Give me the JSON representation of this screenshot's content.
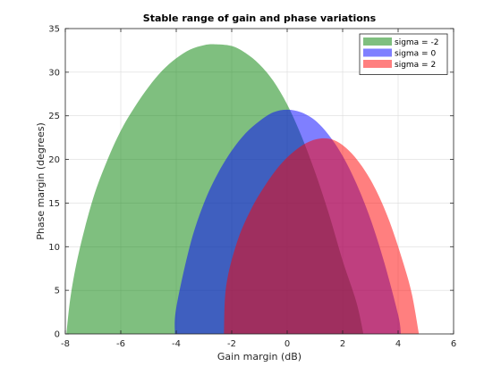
{
  "chart_data": {
    "type": "area",
    "title": "Stable range of gain and phase variations",
    "xlabel": "Gain margin (dB)",
    "ylabel": "Phase margin (degrees)",
    "xlim": [
      -8,
      6
    ],
    "ylim": [
      0,
      35
    ],
    "xticks": [
      -8,
      -6,
      -4,
      -2,
      0,
      2,
      4,
      6
    ],
    "yticks": [
      0,
      5,
      10,
      15,
      20,
      25,
      30,
      35
    ],
    "grid": true,
    "legend_position": "top-right",
    "series": [
      {
        "name": "sigma = -2",
        "color": "#008000",
        "opacity": 0.5,
        "x": [
          -7.96,
          -7.8,
          -7.5,
          -7.0,
          -6.5,
          -6.0,
          -5.5,
          -5.0,
          -4.5,
          -4.0,
          -3.5,
          -3.0,
          -2.6,
          -2.0,
          -1.5,
          -1.0,
          -0.5,
          0.0,
          0.5,
          1.0,
          1.5,
          2.0,
          2.5,
          2.75
        ],
        "y": [
          0,
          4.5,
          9.5,
          15.5,
          19.8,
          23.3,
          26.0,
          28.3,
          30.2,
          31.6,
          32.6,
          33.1,
          33.2,
          33.0,
          32.2,
          30.9,
          29.0,
          26.3,
          22.8,
          18.6,
          13.8,
          8.4,
          3.6,
          0
        ]
      },
      {
        "name": "sigma = 0",
        "color": "#0000FF",
        "opacity": 0.5,
        "x": [
          -4.05,
          -4.0,
          -3.5,
          -3.0,
          -2.5,
          -2.0,
          -1.5,
          -1.0,
          -0.5,
          0.0,
          0.5,
          1.0,
          1.5,
          2.0,
          2.5,
          3.0,
          3.5,
          4.0,
          4.1
        ],
        "y": [
          0,
          3.0,
          10.2,
          15.0,
          18.4,
          21.0,
          23.0,
          24.4,
          25.4,
          25.7,
          25.4,
          24.5,
          22.8,
          20.4,
          17.2,
          13.2,
          8.2,
          2.2,
          0
        ]
      },
      {
        "name": "sigma = 2",
        "color": "#FF0000",
        "opacity": 0.5,
        "x": [
          -2.28,
          -2.2,
          -1.8,
          -1.3,
          -0.8,
          -0.3,
          0.2,
          0.7,
          1.2,
          1.7,
          2.2,
          2.7,
          3.2,
          3.7,
          4.2,
          4.5,
          4.75
        ],
        "y": [
          0,
          5.5,
          10.6,
          14.3,
          17.0,
          19.2,
          20.8,
          21.9,
          22.4,
          22.2,
          21.1,
          19.2,
          16.5,
          12.8,
          8.0,
          4.5,
          0
        ]
      }
    ]
  }
}
